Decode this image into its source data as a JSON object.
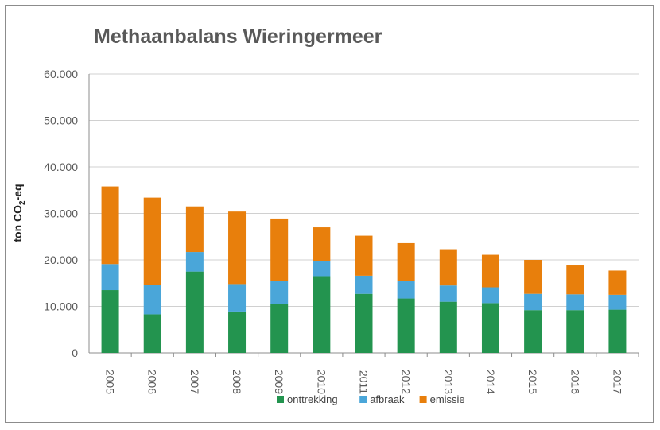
{
  "chart_data": {
    "type": "bar",
    "stacked": true,
    "title": "Methaanbalans Wieringermeer",
    "ylabel": "ton CO2-eq",
    "ylabel_parts": {
      "main": "ton CO",
      "sub": "2",
      "tail": "-eq"
    },
    "xlabel": "",
    "ylim": [
      0,
      60000
    ],
    "yticks": [
      0,
      10000,
      20000,
      30000,
      40000,
      50000,
      60000
    ],
    "ytick_labels": [
      "0",
      "10.000",
      "20.000",
      "30.000",
      "40.000",
      "50.000",
      "60.000"
    ],
    "grid": true,
    "legend_position": "bottom",
    "categories": [
      "2005",
      "2006",
      "2007",
      "2008",
      "2009",
      "2010",
      "2011",
      "2012",
      "2013",
      "2014",
      "2015",
      "2016",
      "2017"
    ],
    "series": [
      {
        "name": "onttrekking",
        "color": "#23944f",
        "values": [
          13500,
          8300,
          17500,
          8900,
          10500,
          16500,
          12700,
          11700,
          11000,
          10700,
          9200,
          9200,
          9300
        ]
      },
      {
        "name": "afbraak",
        "color": "#4aa6d9",
        "values": [
          5600,
          6400,
          4200,
          5900,
          4900,
          3300,
          3900,
          3700,
          3500,
          3400,
          3500,
          3400,
          3200
        ]
      },
      {
        "name": "emissie",
        "color": "#e87f0c",
        "values": [
          16700,
          18700,
          9800,
          15600,
          13500,
          7200,
          8600,
          8200,
          7800,
          7000,
          7300,
          6200,
          5200
        ]
      }
    ]
  }
}
